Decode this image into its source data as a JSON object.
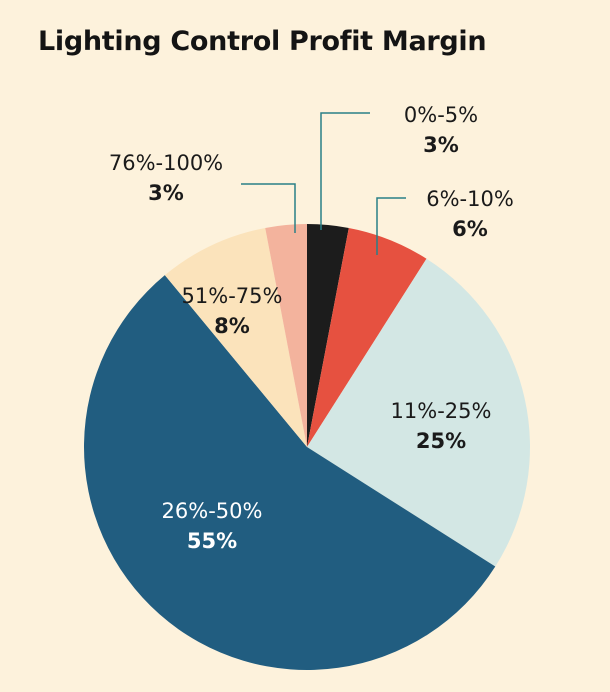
{
  "chart_data": {
    "type": "pie",
    "title": "Lighting Control Profit Margin",
    "slices": [
      {
        "label": "0%-5%",
        "value": 3,
        "value_label": "3%",
        "color": "#1c1c1c",
        "label_color": "#1a1a1a"
      },
      {
        "label": "6%-10%",
        "value": 6,
        "value_label": "6%",
        "color": "#e65140",
        "label_color": "#1a1a1a"
      },
      {
        "label": "11%-25%",
        "value": 25,
        "value_label": "25%",
        "color": "#d3e7e4",
        "label_color": "#1a1a1a"
      },
      {
        "label": "26%-50%",
        "value": 55,
        "value_label": "55%",
        "color": "#215d80",
        "label_color": "#ffffff"
      },
      {
        "label": "51%-75%",
        "value": 8,
        "value_label": "8%",
        "color": "#fbe3bb",
        "label_color": "#1a1a1a"
      },
      {
        "label": "76%-100%",
        "value": 3,
        "value_label": "3%",
        "color": "#f3b39d",
        "label_color": "#1a1a1a"
      }
    ],
    "start_angle_deg": 0,
    "direction": "clockwise",
    "leader_line_color": "#2a7f86",
    "background": "#fdf2dc"
  }
}
